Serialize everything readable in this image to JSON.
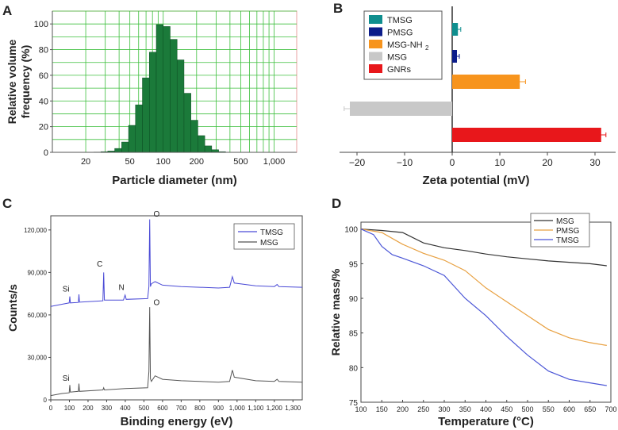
{
  "chart_data": [
    {
      "panel": "A",
      "type": "bar",
      "xscale": "log",
      "xlabel": "Particle diameter (nm)",
      "ylabel": "Relative volume frequency (%)",
      "xlim": [
        10,
        1600
      ],
      "ylim": [
        0,
        110
      ],
      "x_ticks": [
        20,
        50,
        100,
        200,
        500,
        1000
      ],
      "x_tick_labels": [
        "20",
        "50",
        "100",
        "200",
        "500",
        "1,000"
      ],
      "y_ticks": [
        0,
        20,
        40,
        60,
        80,
        100
      ],
      "y_tick_labels": [
        "0",
        "20",
        "40",
        "60",
        "80",
        "100"
      ],
      "bin_edges": [
        23.7,
        27.4,
        31.6,
        36.5,
        42.2,
        48.7,
        56.2,
        64.9,
        75.0,
        86.6,
        100.0,
        115.5,
        133.4,
        154.0,
        177.8,
        205.4,
        237.1,
        273.8,
        316.2,
        365.2
      ],
      "values": [
        0.2,
        0.5,
        1,
        3,
        8,
        21,
        37,
        58,
        78,
        99.5,
        98,
        88,
        72,
        46,
        25,
        13,
        5,
        2,
        0.5
      ],
      "bar_color": "#1b7a3a",
      "grid_color": "#3cbf3c",
      "frame_color": "#e8a0a0"
    },
    {
      "panel": "B",
      "type": "bar",
      "orientation": "horizontal",
      "xlabel": "Zeta potential (mV)",
      "xlim": [
        -24,
        34
      ],
      "x_ticks": [
        -20,
        -10,
        0,
        10,
        20,
        30
      ],
      "x_tick_labels": [
        "−20",
        "−10",
        "0",
        "10",
        "20",
        "30"
      ],
      "series": [
        {
          "name": "TMSG",
          "value": 1.2,
          "error": 0.6,
          "color": "#0f8e8e"
        },
        {
          "name": "PMSG",
          "value": 1.0,
          "error": 0.5,
          "color": "#0c1d8a"
        },
        {
          "name": "MSG-NH2",
          "value": 14.2,
          "error": 1.2,
          "color": "#f7941d"
        },
        {
          "name": "MSG",
          "value": -21.5,
          "error": 1.2,
          "color": "#c8c8c8"
        },
        {
          "name": "GNRs",
          "value": 31.3,
          "error": 1.0,
          "color": "#e8171b"
        }
      ],
      "legend_labels": [
        "TMSG",
        "PMSG",
        "MSG-NH",
        "MSG",
        "GNRs"
      ],
      "legend_subscript": "2",
      "legend": "top-left"
    },
    {
      "panel": "C",
      "type": "line",
      "xlabel": "Binding energy (eV)",
      "ylabel": "Counts/s",
      "xlim": [
        0,
        1350
      ],
      "ylim": [
        0,
        130000
      ],
      "x_ticks": [
        0,
        100,
        200,
        300,
        400,
        500,
        600,
        700,
        800,
        900,
        1000,
        1100,
        1200,
        1300
      ],
      "x_tick_labels": [
        "0",
        "100",
        "200",
        "300",
        "400",
        "500",
        "600",
        "700",
        "800",
        "900",
        "1,000",
        "1,100",
        "1,200",
        "1,300"
      ],
      "y_ticks": [
        0,
        30000,
        60000,
        90000,
        120000
      ],
      "y_tick_labels": [
        "0",
        "30,000",
        "60,000",
        "90,000",
        "120,000"
      ],
      "series": [
        {
          "name": "TMSG",
          "color": "#4a4ad6",
          "points": [
            [
              0,
              66000
            ],
            [
              60,
              67500
            ],
            [
              99,
              68500
            ],
            [
              102,
              73000
            ],
            [
              105,
              68500
            ],
            [
              148,
              68800
            ],
            [
              151,
              74500
            ],
            [
              154,
              69000
            ],
            [
              280,
              70000
            ],
            [
              284,
              90000
            ],
            [
              288,
              70500
            ],
            [
              390,
              70500
            ],
            [
              399,
              74000
            ],
            [
              405,
              71000
            ],
            [
              520,
              71500
            ],
            [
              527,
              80000
            ],
            [
              531,
              127500
            ],
            [
              535,
              80000
            ],
            [
              540,
              82000
            ],
            [
              560,
              83500
            ],
            [
              600,
              81000
            ],
            [
              700,
              80000
            ],
            [
              800,
              79500
            ],
            [
              900,
              79000
            ],
            [
              960,
              79500
            ],
            [
              975,
              87000
            ],
            [
              985,
              82500
            ],
            [
              1100,
              80500
            ],
            [
              1200,
              80000
            ],
            [
              1215,
              81500
            ],
            [
              1225,
              80000
            ],
            [
              1350,
              79500
            ]
          ]
        },
        {
          "name": "MSG",
          "color": "#555555",
          "points": [
            [
              0,
              3000
            ],
            [
              60,
              4500
            ],
            [
              99,
              5000
            ],
            [
              102,
              10500
            ],
            [
              105,
              5500
            ],
            [
              148,
              6000
            ],
            [
              151,
              11500
            ],
            [
              154,
              6000
            ],
            [
              280,
              7000
            ],
            [
              284,
              8500
            ],
            [
              288,
              7000
            ],
            [
              400,
              8000
            ],
            [
              520,
              8500
            ],
            [
              527,
              20000
            ],
            [
              531,
              65500
            ],
            [
              535,
              15000
            ],
            [
              540,
              13000
            ],
            [
              560,
              17000
            ],
            [
              600,
              14500
            ],
            [
              700,
              13500
            ],
            [
              800,
              13000
            ],
            [
              900,
              12500
            ],
            [
              960,
              13000
            ],
            [
              975,
              21000
            ],
            [
              985,
              16000
            ],
            [
              1100,
              13500
            ],
            [
              1200,
              13000
            ],
            [
              1215,
              14500
            ],
            [
              1225,
              13000
            ],
            [
              1350,
              12500
            ]
          ]
        }
      ],
      "annotations": [
        "O",
        "C",
        "Si",
        "N",
        "O",
        "Si"
      ],
      "legend": "top-right"
    },
    {
      "panel": "D",
      "type": "line",
      "xlabel": "Temperature (°C)",
      "ylabel": "Relative mass/%",
      "xlim": [
        100,
        700
      ],
      "ylim": [
        75,
        101
      ],
      "x_ticks": [
        100,
        150,
        200,
        250,
        300,
        350,
        400,
        450,
        500,
        550,
        600,
        650,
        700
      ],
      "x_tick_labels": [
        "100",
        "150",
        "200",
        "250",
        "300",
        "350",
        "400",
        "450",
        "500",
        "550",
        "600",
        "650",
        "700"
      ],
      "y_ticks": [
        75,
        80,
        85,
        90,
        95,
        100
      ],
      "y_tick_labels": [
        "75",
        "80",
        "85",
        "90",
        "95",
        "100"
      ],
      "series": [
        {
          "name": "MSG",
          "color": "#333333",
          "points": [
            [
              100,
              100
            ],
            [
              150,
              99.8
            ],
            [
              200,
              99.5
            ],
            [
              250,
              98.0
            ],
            [
              300,
              97.3
            ],
            [
              350,
              96.9
            ],
            [
              400,
              96.4
            ],
            [
              450,
              96.0
            ],
            [
              500,
              95.7
            ],
            [
              550,
              95.4
            ],
            [
              600,
              95.2
            ],
            [
              650,
              95.0
            ],
            [
              690,
              94.7
            ]
          ]
        },
        {
          "name": "PMSG",
          "color": "#e8a040",
          "points": [
            [
              100,
              100
            ],
            [
              150,
              99.5
            ],
            [
              200,
              97.8
            ],
            [
              250,
              96.5
            ],
            [
              300,
              95.5
            ],
            [
              350,
              94.0
            ],
            [
              400,
              91.5
            ],
            [
              450,
              89.5
            ],
            [
              500,
              87.5
            ],
            [
              550,
              85.5
            ],
            [
              600,
              84.3
            ],
            [
              650,
              83.6
            ],
            [
              690,
              83.2
            ]
          ]
        },
        {
          "name": "TMSG",
          "color": "#4a55d6",
          "points": [
            [
              100,
              100
            ],
            [
              130,
              99.2
            ],
            [
              150,
              97.5
            ],
            [
              175,
              96.3
            ],
            [
              200,
              95.8
            ],
            [
              250,
              94.7
            ],
            [
              300,
              93.3
            ],
            [
              350,
              90.0
            ],
            [
              400,
              87.5
            ],
            [
              450,
              84.5
            ],
            [
              500,
              81.8
            ],
            [
              550,
              79.5
            ],
            [
              600,
              78.3
            ],
            [
              650,
              77.8
            ],
            [
              690,
              77.4
            ]
          ]
        }
      ],
      "legend": "top-right"
    }
  ]
}
